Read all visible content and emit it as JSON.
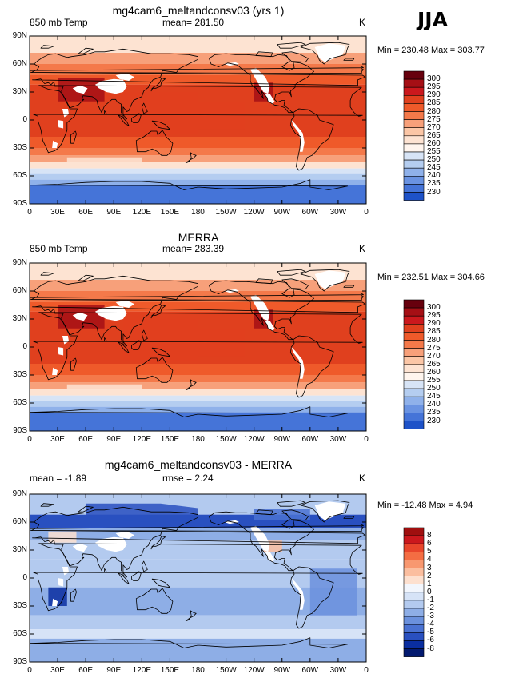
{
  "season": "JJA",
  "lat_labels": [
    "90N",
    "60N",
    "30N",
    "0",
    "30S",
    "60S",
    "90S"
  ],
  "lon_labels": [
    "0",
    "30E",
    "60E",
    "90E",
    "120E",
    "150E",
    "180",
    "150W",
    "120W",
    "90W",
    "60W",
    "30W",
    "0"
  ],
  "panels": [
    {
      "title": "mg4cam6_meltandconsv03 (yrs 1)",
      "left_label": "850 mb Temp",
      "center_label": "mean= 281.50",
      "right_label": "K",
      "min_max": "Min = 230.48 Max = 303.77",
      "kind": "abs",
      "colorbar_labels": [
        "300",
        "295",
        "290",
        "285",
        "280",
        "275",
        "270",
        "265",
        "260",
        "255",
        "250",
        "245",
        "240",
        "235",
        "230"
      ]
    },
    {
      "title": "MERRA",
      "left_label": "850 mb Temp",
      "center_label": "mean= 283.39",
      "right_label": "K",
      "min_max": "Min = 232.51 Max = 304.66",
      "kind": "abs",
      "colorbar_labels": [
        "300",
        "295",
        "290",
        "285",
        "280",
        "275",
        "270",
        "265",
        "260",
        "255",
        "250",
        "245",
        "240",
        "235",
        "230"
      ]
    },
    {
      "title": "mg4cam6_meltandconsv03 - MERRA",
      "left_label": "mean =   -1.89",
      "center_label": "rmse =    2.24",
      "right_label": "K",
      "min_max": "Min = -12.48 Max =    4.94",
      "kind": "diff",
      "colorbar_labels": [
        "8",
        "6",
        "5",
        "4",
        "3",
        "2",
        "1",
        "0",
        "-1",
        "-2",
        "-3",
        "-4",
        "-5",
        "-6",
        "-8"
      ]
    }
  ],
  "colors": {
    "abs_scale": [
      "#67000d",
      "#a50f15",
      "#cb181d",
      "#e0401e",
      "#ef5a2a",
      "#f4794a",
      "#f7a07a",
      "#fbc6a6",
      "#fde3d2",
      "#fff5ee",
      "#d7e4f6",
      "#b4cdf0",
      "#8fb1ea",
      "#6a93e2",
      "#4574d8",
      "#1e52c8",
      "#0a35aa",
      "#061c80"
    ],
    "diff_scale": [
      "#a00f0f",
      "#cb181d",
      "#e8452b",
      "#f46d43",
      "#f89870",
      "#fbbe9f",
      "#fde0cf",
      "#f2f6fd",
      "#d6e3f7",
      "#b3caef",
      "#8eaee6",
      "#6b91dd",
      "#4a72d2",
      "#2950c0",
      "#0a2ea0",
      "#031a70"
    ]
  }
}
